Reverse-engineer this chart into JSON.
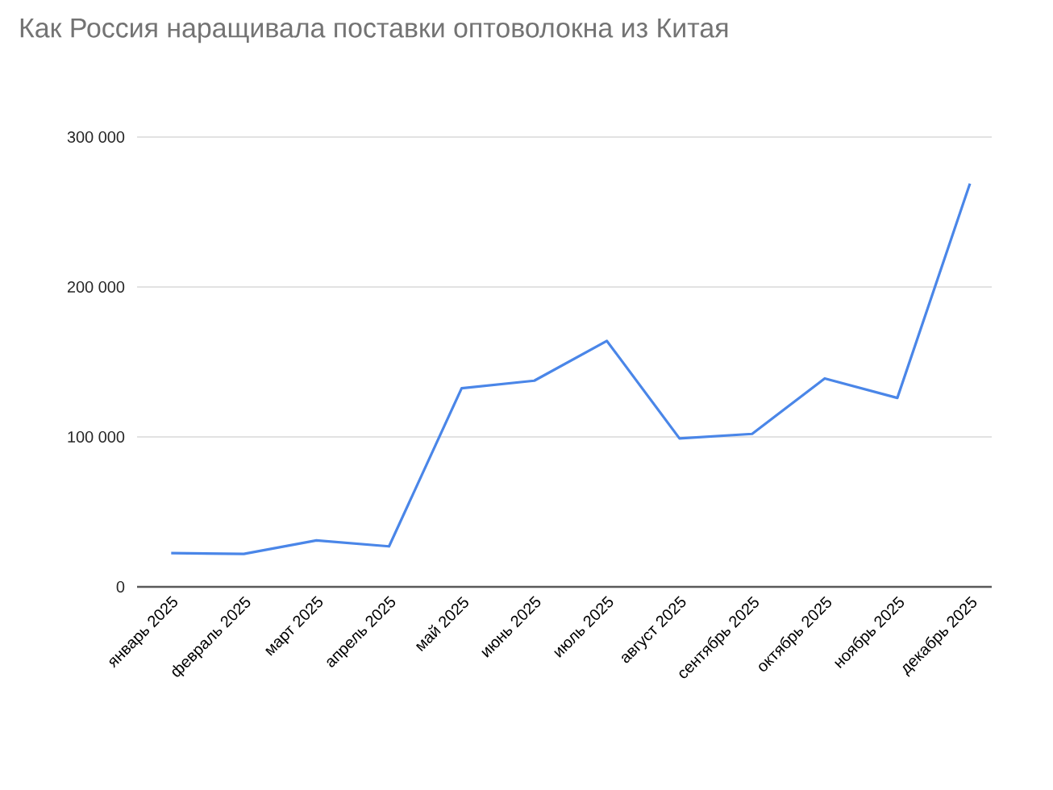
{
  "chart_data": {
    "type": "line",
    "title": "Как Россия наращивала поставки оптоволокна из Китая",
    "categories": [
      "январь 2025",
      "февраль 2025",
      "март 2025",
      "апрель 2025",
      "май 2025",
      "июнь 2025",
      "июль 2025",
      "август 2025",
      "сентябрь 2025",
      "октябрь 2025",
      "ноябрь 2025",
      "декабрь 2025"
    ],
    "series": [
      {
        "color": "#4a86e8",
        "values": [
          22500,
          22000,
          31000,
          27000,
          132500,
          137500,
          164000,
          99000,
          102000,
          139000,
          126000,
          269000
        ]
      }
    ],
    "ylim": [
      0,
      300000
    ],
    "yticks": [
      {
        "value": 0,
        "label": "0"
      },
      {
        "value": 100000,
        "label": "100 000"
      },
      {
        "value": 200000,
        "label": "200 000"
      },
      {
        "value": 300000,
        "label": "300 000"
      }
    ],
    "grid": "y",
    "marker": "none",
    "line_style": "solid"
  }
}
